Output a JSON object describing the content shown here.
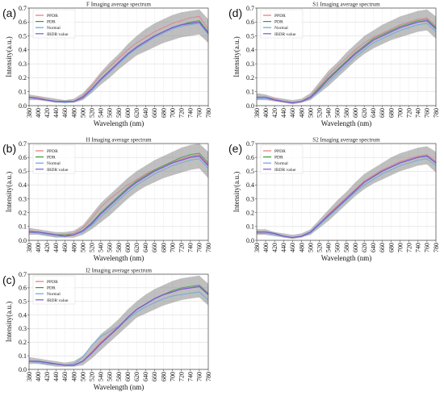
{
  "figure": {
    "panels": [
      {
        "id": "a",
        "label": "(a)"
      },
      {
        "id": "b",
        "label": "(b)"
      },
      {
        "id": "c",
        "label": "(c)"
      },
      {
        "id": "d",
        "label": "(d)"
      },
      {
        "id": "e",
        "label": "(e)"
      }
    ]
  },
  "colors": {
    "PPDR": "#e8747c",
    "PDR": "#3a9a3a",
    "Normal": "#5aa8e0",
    "IRDR value": "#7a5ad0",
    "band": "#8a8a8a"
  },
  "chart_data": [
    {
      "type": "line",
      "panel": "(a)",
      "title": "F Imaging average spectrum",
      "xlabel": "Wavelength (nm)",
      "ylabel": "Intensity(a.u.)",
      "xlim": [
        380,
        780
      ],
      "ylim": [
        0,
        0.7
      ],
      "xticks": [
        380,
        400,
        420,
        440,
        460,
        480,
        500,
        520,
        540,
        560,
        580,
        600,
        620,
        640,
        660,
        680,
        700,
        720,
        740,
        760,
        780
      ],
      "yticks": [
        0.0,
        0.1,
        0.2,
        0.3,
        0.4,
        0.5,
        0.6,
        0.7
      ],
      "grid": true,
      "legend_position": "top-left",
      "x": [
        380,
        400,
        420,
        440,
        460,
        480,
        500,
        520,
        540,
        560,
        580,
        600,
        620,
        640,
        660,
        680,
        700,
        720,
        740,
        760,
        780
      ],
      "series": [
        {
          "name": "PPDR",
          "values": [
            0.06,
            0.06,
            0.04,
            0.03,
            0.03,
            0.03,
            0.07,
            0.14,
            0.22,
            0.28,
            0.34,
            0.4,
            0.45,
            0.49,
            0.53,
            0.56,
            0.59,
            0.61,
            0.63,
            0.64,
            0.55
          ]
        },
        {
          "name": "PDR",
          "values": [
            0.06,
            0.05,
            0.04,
            0.03,
            0.03,
            0.03,
            0.06,
            0.12,
            0.19,
            0.25,
            0.31,
            0.37,
            0.42,
            0.46,
            0.5,
            0.53,
            0.56,
            0.58,
            0.6,
            0.61,
            0.53
          ]
        },
        {
          "name": "Normal",
          "values": [
            0.06,
            0.05,
            0.04,
            0.03,
            0.02,
            0.03,
            0.05,
            0.11,
            0.18,
            0.24,
            0.3,
            0.36,
            0.41,
            0.45,
            0.49,
            0.52,
            0.55,
            0.57,
            0.58,
            0.59,
            0.51
          ]
        },
        {
          "name": "IRDR value",
          "values": [
            0.06,
            0.05,
            0.04,
            0.03,
            0.03,
            0.03,
            0.06,
            0.12,
            0.19,
            0.25,
            0.31,
            0.37,
            0.42,
            0.46,
            0.5,
            0.53,
            0.56,
            0.58,
            0.59,
            0.6,
            0.52
          ]
        }
      ],
      "band_upper": [
        0.08,
        0.07,
        0.06,
        0.05,
        0.04,
        0.05,
        0.09,
        0.16,
        0.24,
        0.31,
        0.37,
        0.44,
        0.5,
        0.55,
        0.59,
        0.62,
        0.65,
        0.67,
        0.68,
        0.69,
        0.62
      ],
      "band_lower": [
        0.04,
        0.04,
        0.03,
        0.02,
        0.02,
        0.02,
        0.04,
        0.09,
        0.15,
        0.2,
        0.26,
        0.31,
        0.36,
        0.39,
        0.42,
        0.45,
        0.47,
        0.49,
        0.5,
        0.51,
        0.45
      ]
    },
    {
      "type": "line",
      "panel": "(b)",
      "title": "H Imaging average spectrum",
      "xlabel": "Wavelength (nm)",
      "ylabel": "Intensity(a.u.)",
      "xlim": [
        380,
        780
      ],
      "ylim": [
        0,
        0.7
      ],
      "xticks": [
        380,
        400,
        420,
        440,
        460,
        480,
        500,
        520,
        540,
        560,
        580,
        600,
        620,
        640,
        660,
        680,
        700,
        720,
        740,
        760,
        780
      ],
      "yticks": [
        0.0,
        0.1,
        0.2,
        0.3,
        0.4,
        0.5,
        0.6,
        0.7
      ],
      "grid": true,
      "legend_position": "top-left",
      "x": [
        380,
        400,
        420,
        440,
        460,
        480,
        500,
        520,
        540,
        560,
        580,
        600,
        620,
        640,
        660,
        680,
        700,
        720,
        740,
        760,
        780
      ],
      "series": [
        {
          "name": "PPDR",
          "values": [
            0.07,
            0.06,
            0.05,
            0.04,
            0.04,
            0.05,
            0.09,
            0.16,
            0.24,
            0.3,
            0.35,
            0.4,
            0.44,
            0.48,
            0.51,
            0.54,
            0.57,
            0.59,
            0.61,
            0.62,
            0.55
          ]
        },
        {
          "name": "PDR",
          "values": [
            0.06,
            0.06,
            0.05,
            0.04,
            0.04,
            0.04,
            0.07,
            0.13,
            0.2,
            0.26,
            0.32,
            0.38,
            0.43,
            0.47,
            0.51,
            0.54,
            0.57,
            0.6,
            0.62,
            0.63,
            0.56
          ]
        },
        {
          "name": "Normal",
          "values": [
            0.06,
            0.05,
            0.04,
            0.03,
            0.03,
            0.04,
            0.06,
            0.11,
            0.17,
            0.23,
            0.29,
            0.35,
            0.4,
            0.44,
            0.48,
            0.51,
            0.54,
            0.56,
            0.58,
            0.59,
            0.52
          ]
        },
        {
          "name": "IRDR value",
          "values": [
            0.06,
            0.06,
            0.05,
            0.04,
            0.03,
            0.04,
            0.07,
            0.12,
            0.19,
            0.25,
            0.31,
            0.37,
            0.42,
            0.46,
            0.5,
            0.53,
            0.56,
            0.58,
            0.6,
            0.61,
            0.54
          ]
        }
      ],
      "band_upper": [
        0.09,
        0.08,
        0.07,
        0.06,
        0.06,
        0.07,
        0.11,
        0.19,
        0.27,
        0.33,
        0.39,
        0.45,
        0.5,
        0.54,
        0.58,
        0.61,
        0.64,
        0.67,
        0.69,
        0.7,
        0.64
      ],
      "band_lower": [
        0.04,
        0.04,
        0.03,
        0.02,
        0.02,
        0.02,
        0.04,
        0.08,
        0.13,
        0.18,
        0.24,
        0.3,
        0.35,
        0.39,
        0.42,
        0.45,
        0.47,
        0.49,
        0.51,
        0.52,
        0.45
      ]
    },
    {
      "type": "line",
      "panel": "(c)",
      "title": "I2 Imaging average spectrum",
      "xlabel": "Wavelength (nm)",
      "ylabel": "Intensity(a.u.)",
      "xlim": [
        380,
        780
      ],
      "ylim": [
        0,
        0.7
      ],
      "xticks": [
        380,
        400,
        420,
        440,
        460,
        480,
        500,
        520,
        540,
        560,
        580,
        600,
        620,
        640,
        660,
        680,
        700,
        720,
        740,
        760,
        780
      ],
      "yticks": [
        0.0,
        0.1,
        0.2,
        0.3,
        0.4,
        0.5,
        0.6,
        0.7
      ],
      "grid": true,
      "legend_position": "top-left",
      "x": [
        380,
        400,
        420,
        440,
        460,
        480,
        500,
        520,
        540,
        560,
        580,
        600,
        620,
        640,
        660,
        680,
        700,
        720,
        740,
        760,
        780
      ],
      "series": [
        {
          "name": "PPDR",
          "values": [
            0.06,
            0.06,
            0.05,
            0.04,
            0.03,
            0.03,
            0.06,
            0.13,
            0.2,
            0.26,
            0.32,
            0.38,
            0.44,
            0.48,
            0.52,
            0.55,
            0.57,
            0.59,
            0.6,
            0.61,
            0.55
          ]
        },
        {
          "name": "PDR",
          "values": [
            0.06,
            0.06,
            0.05,
            0.04,
            0.03,
            0.03,
            0.06,
            0.12,
            0.19,
            0.25,
            0.31,
            0.38,
            0.44,
            0.48,
            0.52,
            0.55,
            0.58,
            0.6,
            0.61,
            0.62,
            0.56
          ]
        },
        {
          "name": "Normal",
          "values": [
            0.06,
            0.05,
            0.04,
            0.04,
            0.03,
            0.04,
            0.09,
            0.18,
            0.24,
            0.28,
            0.32,
            0.37,
            0.42,
            0.46,
            0.49,
            0.52,
            0.54,
            0.55,
            0.56,
            0.57,
            0.51
          ]
        },
        {
          "name": "IRDR value",
          "values": [
            0.06,
            0.06,
            0.05,
            0.04,
            0.03,
            0.03,
            0.06,
            0.12,
            0.19,
            0.25,
            0.31,
            0.38,
            0.44,
            0.48,
            0.52,
            0.55,
            0.57,
            0.59,
            0.6,
            0.61,
            0.55
          ]
        }
      ],
      "band_upper": [
        0.09,
        0.08,
        0.07,
        0.06,
        0.05,
        0.06,
        0.1,
        0.18,
        0.26,
        0.31,
        0.37,
        0.44,
        0.5,
        0.55,
        0.59,
        0.62,
        0.65,
        0.67,
        0.68,
        0.69,
        0.63
      ],
      "band_lower": [
        0.04,
        0.04,
        0.03,
        0.02,
        0.02,
        0.02,
        0.03,
        0.08,
        0.14,
        0.2,
        0.26,
        0.32,
        0.38,
        0.41,
        0.44,
        0.47,
        0.49,
        0.51,
        0.52,
        0.53,
        0.47
      ]
    },
    {
      "type": "line",
      "panel": "(d)",
      "title": "S1 Imaging average spectrum",
      "xlabel": "Wavelength (nm)",
      "ylabel": "Intensity(a.u.)",
      "xlim": [
        380,
        780
      ],
      "ylim": [
        0,
        0.7
      ],
      "xticks": [
        380,
        400,
        420,
        440,
        460,
        480,
        500,
        520,
        540,
        560,
        580,
        600,
        620,
        640,
        660,
        680,
        700,
        720,
        740,
        760,
        780
      ],
      "yticks": [
        0.0,
        0.1,
        0.2,
        0.3,
        0.4,
        0.5,
        0.6,
        0.7
      ],
      "grid": true,
      "legend_position": "top-left",
      "x": [
        380,
        400,
        420,
        440,
        460,
        480,
        500,
        520,
        540,
        560,
        580,
        600,
        620,
        640,
        660,
        680,
        700,
        720,
        740,
        760,
        780
      ],
      "series": [
        {
          "name": "PPDR",
          "values": [
            0.06,
            0.06,
            0.05,
            0.03,
            0.02,
            0.03,
            0.07,
            0.14,
            0.22,
            0.28,
            0.34,
            0.4,
            0.45,
            0.49,
            0.52,
            0.55,
            0.58,
            0.6,
            0.62,
            0.63,
            0.57
          ]
        },
        {
          "name": "PDR",
          "values": [
            0.06,
            0.06,
            0.04,
            0.03,
            0.02,
            0.03,
            0.06,
            0.13,
            0.2,
            0.26,
            0.32,
            0.38,
            0.43,
            0.48,
            0.51,
            0.54,
            0.57,
            0.59,
            0.61,
            0.62,
            0.56
          ]
        },
        {
          "name": "Normal",
          "values": [
            0.05,
            0.05,
            0.04,
            0.03,
            0.02,
            0.03,
            0.05,
            0.11,
            0.17,
            0.23,
            0.29,
            0.35,
            0.4,
            0.45,
            0.48,
            0.51,
            0.54,
            0.56,
            0.58,
            0.59,
            0.53
          ]
        },
        {
          "name": "IRDR value",
          "values": [
            0.06,
            0.06,
            0.04,
            0.03,
            0.02,
            0.03,
            0.06,
            0.12,
            0.19,
            0.25,
            0.31,
            0.37,
            0.42,
            0.47,
            0.5,
            0.53,
            0.56,
            0.58,
            0.6,
            0.61,
            0.55
          ]
        }
      ],
      "band_upper": [
        0.09,
        0.08,
        0.06,
        0.05,
        0.04,
        0.05,
        0.09,
        0.17,
        0.25,
        0.31,
        0.38,
        0.44,
        0.5,
        0.54,
        0.58,
        0.61,
        0.64,
        0.66,
        0.68,
        0.69,
        0.64
      ],
      "band_lower": [
        0.04,
        0.04,
        0.03,
        0.02,
        0.01,
        0.02,
        0.04,
        0.09,
        0.14,
        0.2,
        0.26,
        0.32,
        0.37,
        0.41,
        0.44,
        0.47,
        0.49,
        0.51,
        0.53,
        0.54,
        0.48
      ]
    },
    {
      "type": "line",
      "panel": "(e)",
      "title": "S2 Imaging average spectrum",
      "xlabel": "Wavelength (nm)",
      "ylabel": "Intensity(a.u.)",
      "xlim": [
        380,
        780
      ],
      "ylim": [
        0,
        0.7
      ],
      "xticks": [
        380,
        400,
        420,
        440,
        460,
        480,
        500,
        520,
        540,
        560,
        580,
        600,
        620,
        640,
        660,
        680,
        700,
        720,
        740,
        760,
        780
      ],
      "yticks": [
        0.0,
        0.1,
        0.2,
        0.3,
        0.4,
        0.5,
        0.6,
        0.7
      ],
      "grid": true,
      "legend_position": "top-left",
      "x": [
        380,
        400,
        420,
        440,
        460,
        480,
        500,
        520,
        540,
        560,
        580,
        600,
        620,
        640,
        660,
        680,
        700,
        720,
        740,
        760,
        780
      ],
      "series": [
        {
          "name": "PPDR",
          "values": [
            0.06,
            0.06,
            0.05,
            0.03,
            0.02,
            0.03,
            0.06,
            0.12,
            0.19,
            0.25,
            0.31,
            0.37,
            0.43,
            0.47,
            0.51,
            0.54,
            0.57,
            0.59,
            0.61,
            0.62,
            0.57
          ]
        },
        {
          "name": "PDR",
          "values": [
            0.06,
            0.06,
            0.05,
            0.03,
            0.02,
            0.03,
            0.06,
            0.12,
            0.18,
            0.24,
            0.3,
            0.36,
            0.42,
            0.46,
            0.5,
            0.53,
            0.56,
            0.58,
            0.6,
            0.61,
            0.56
          ]
        },
        {
          "name": "Normal",
          "values": [
            0.05,
            0.05,
            0.04,
            0.03,
            0.02,
            0.03,
            0.05,
            0.11,
            0.17,
            0.23,
            0.29,
            0.35,
            0.4,
            0.44,
            0.48,
            0.51,
            0.54,
            0.56,
            0.58,
            0.59,
            0.54
          ]
        },
        {
          "name": "IRDR value",
          "values": [
            0.06,
            0.06,
            0.05,
            0.03,
            0.02,
            0.03,
            0.06,
            0.12,
            0.18,
            0.24,
            0.3,
            0.36,
            0.42,
            0.46,
            0.5,
            0.53,
            0.56,
            0.58,
            0.6,
            0.61,
            0.56
          ]
        }
      ],
      "band_upper": [
        0.08,
        0.08,
        0.06,
        0.05,
        0.04,
        0.05,
        0.08,
        0.15,
        0.22,
        0.29,
        0.35,
        0.42,
        0.48,
        0.52,
        0.56,
        0.6,
        0.63,
        0.65,
        0.67,
        0.68,
        0.64
      ],
      "band_lower": [
        0.04,
        0.04,
        0.03,
        0.02,
        0.01,
        0.02,
        0.04,
        0.09,
        0.14,
        0.2,
        0.26,
        0.32,
        0.37,
        0.41,
        0.44,
        0.47,
        0.5,
        0.52,
        0.54,
        0.55,
        0.49
      ]
    }
  ]
}
